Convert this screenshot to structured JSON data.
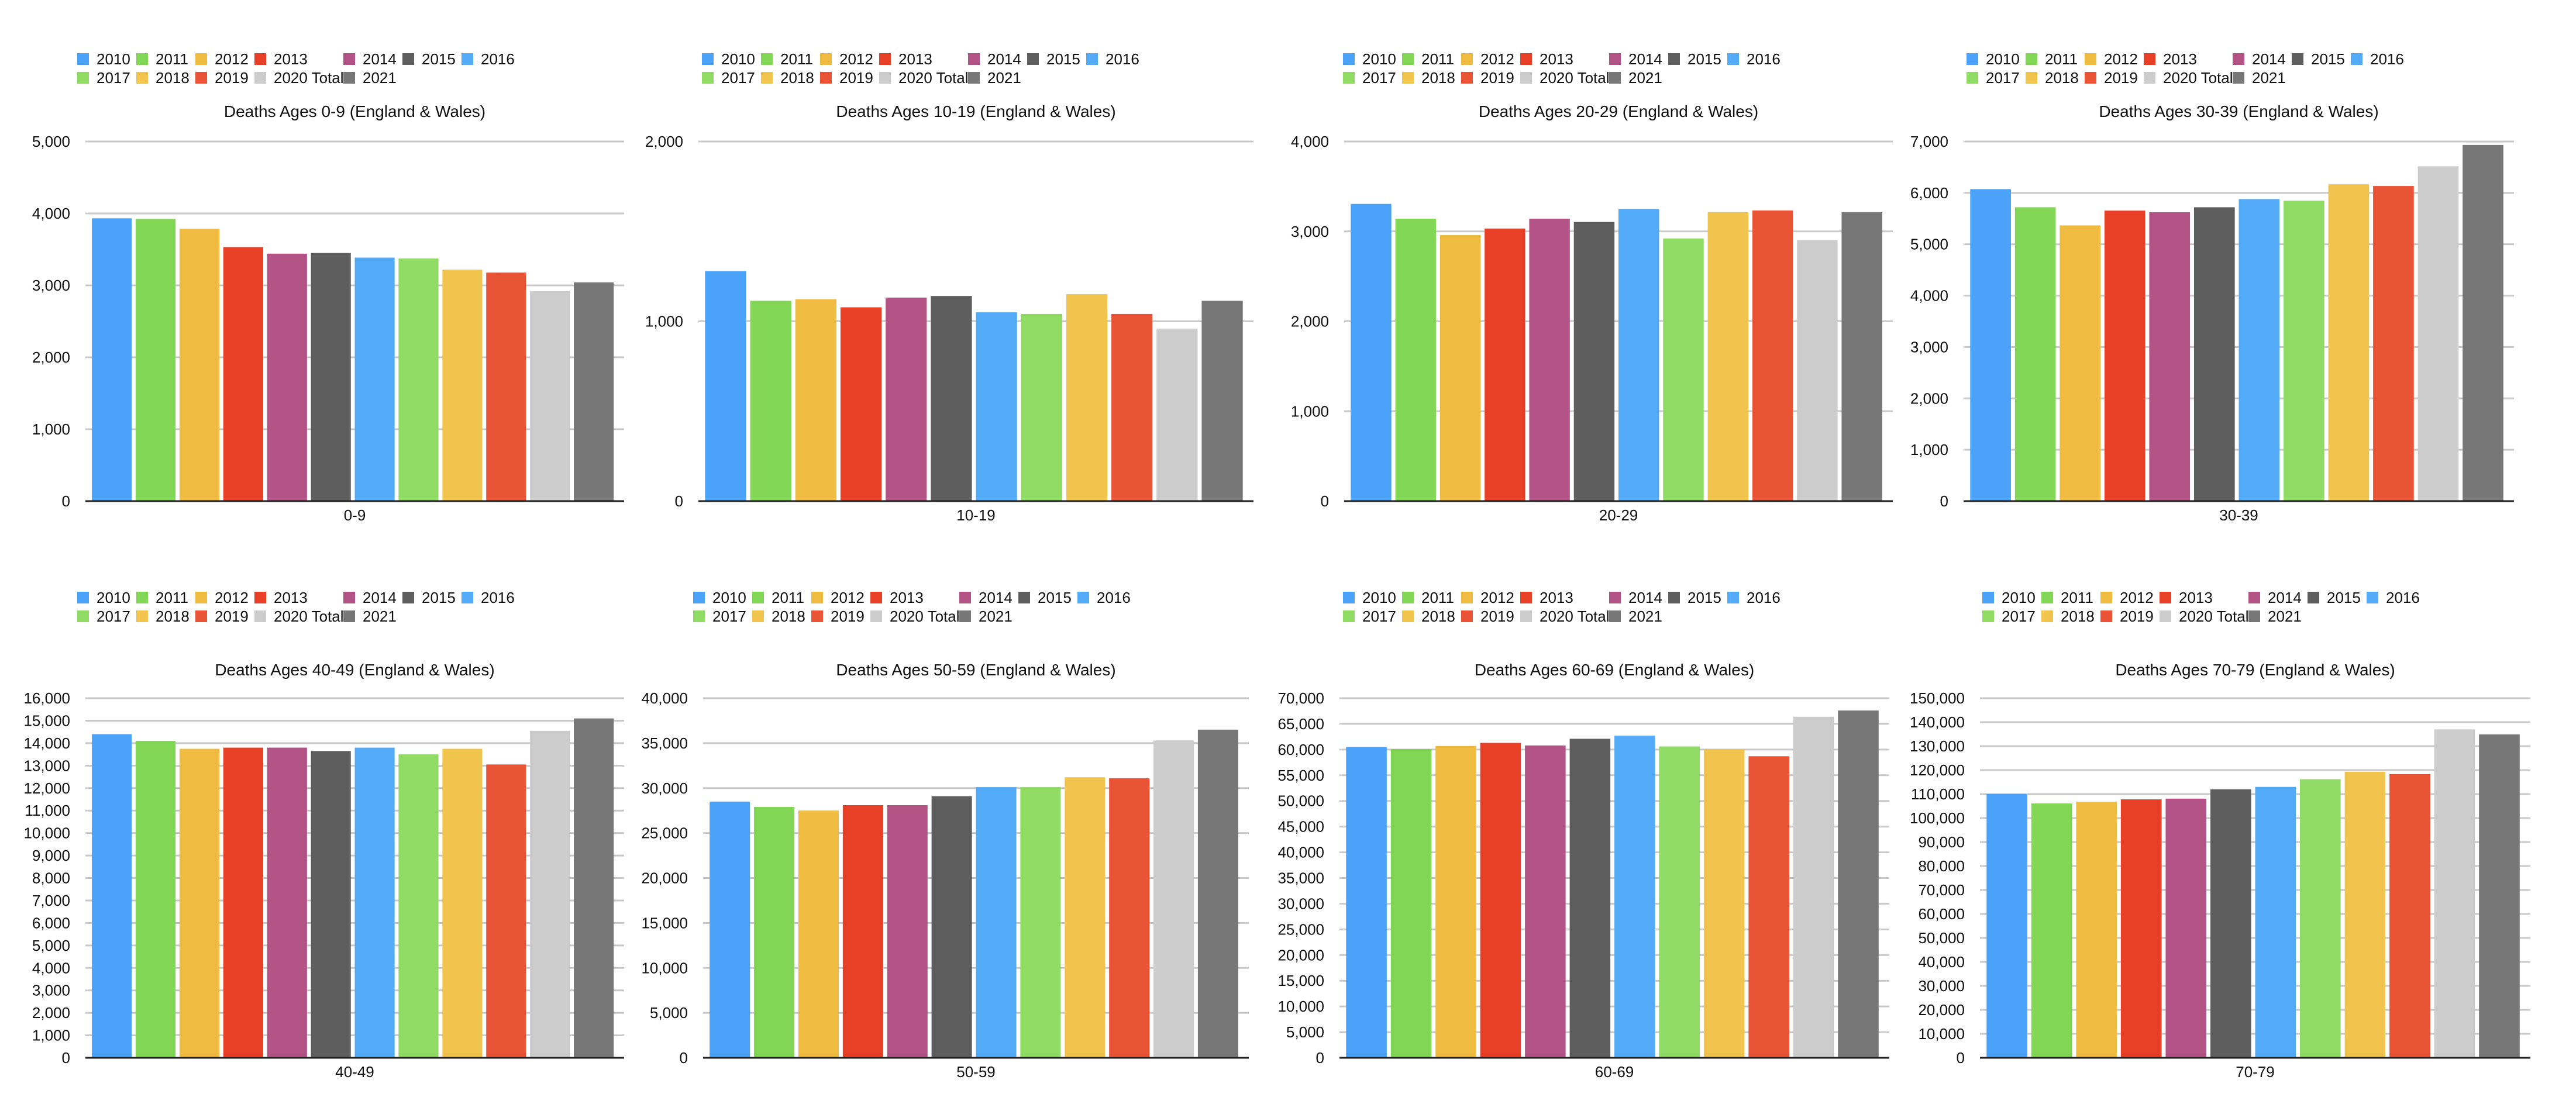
{
  "series_names": [
    "2010",
    "2011",
    "2012",
    "2013",
    "2014",
    "2015",
    "2016",
    "2017",
    "2018",
    "2019",
    "2020 Total",
    "2021"
  ],
  "colors": [
    "#4aa3f8",
    "#82d655",
    "#efbb40",
    "#e84027",
    "#b25285",
    "#5e5e5e",
    "#53abf8",
    "#8fdb64",
    "#f0c44d",
    "#e95437",
    "#cccccc",
    "#777777"
  ],
  "chart_data": [
    {
      "type": "bar",
      "title": "Deaths Ages 0-9 (England & Wales)",
      "category": "0-9",
      "ylim": [
        0,
        5000
      ],
      "ystep": 1000,
      "yticks": [
        "0",
        "1,000",
        "2,000",
        "3,000",
        "4,000",
        "5,000"
      ],
      "values": [
        3932,
        3923,
        3786,
        3532,
        3441,
        3450,
        3386,
        3373,
        3218,
        3177,
        2918,
        3041
      ],
      "legend": "top"
    },
    {
      "type": "bar",
      "title": "Deaths Ages 10-19 (England & Wales)",
      "category": "10-19",
      "ylim": [
        0,
        2000
      ],
      "ystep": 1000,
      "yticks": [
        "0",
        "1,000",
        "2,000"
      ],
      "values": [
        1279,
        1114,
        1123,
        1078,
        1132,
        1141,
        1050,
        1041,
        1151,
        1041,
        959,
        1114
      ],
      "legend": "top"
    },
    {
      "type": "bar",
      "title": "Deaths Ages 20-29 (England & Wales)",
      "category": "20-29",
      "ylim": [
        0,
        4000
      ],
      "ystep": 1000,
      "yticks": [
        "0",
        "1,000",
        "2,000",
        "3,000",
        "4,000"
      ],
      "values": [
        3306,
        3141,
        2959,
        3032,
        3141,
        3105,
        3251,
        2922,
        3214,
        3233,
        2904,
        3214
      ],
      "legend": "top"
    },
    {
      "type": "bar",
      "title": "Deaths Ages 30-39 (England & Wales)",
      "category": "30-39",
      "ylim": [
        0,
        7000
      ],
      "ystep": 1000,
      "yticks": [
        "0",
        "1,000",
        "2,000",
        "3,000",
        "4,000",
        "5,000",
        "6,000",
        "7,000"
      ],
      "values": [
        6073,
        5720,
        5367,
        5655,
        5623,
        5720,
        5879,
        5847,
        6166,
        6134,
        6518,
        6933
      ],
      "legend": "top"
    },
    {
      "type": "bar",
      "title": "Deaths Ages 40-49 (England & Wales)",
      "category": "40-49",
      "ylim": [
        0,
        16000
      ],
      "ystep": 1000,
      "yticks": [
        "0",
        "1,000",
        "2,000",
        "3,000",
        "4,000",
        "5,000",
        "6,000",
        "7,000",
        "8,000",
        "9,000",
        "10,000",
        "11,000",
        "12,000",
        "13,000",
        "14,000",
        "15,000",
        "16,000"
      ],
      "values": [
        14400,
        14100,
        13750,
        13800,
        13800,
        13650,
        13800,
        13500,
        13750,
        13050,
        14550,
        15100
      ],
      "legend": "top"
    },
    {
      "type": "bar",
      "title": "Deaths Ages 50-59 (England & Wales)",
      "category": "50-59",
      "ylim": [
        0,
        40000
      ],
      "ystep": 5000,
      "yticks": [
        "0",
        "5,000",
        "10,000",
        "15,000",
        "20,000",
        "25,000",
        "30,000",
        "35,000",
        "40,000"
      ],
      "values": [
        28500,
        27900,
        27500,
        28100,
        28100,
        29100,
        30100,
        30100,
        31200,
        31100,
        35300,
        36500
      ],
      "legend": "top"
    },
    {
      "type": "bar",
      "title": "Deaths Ages 60-69 (England & Wales)",
      "category": "60-69",
      "ylim": [
        0,
        70000
      ],
      "ystep": 5000,
      "yticks": [
        "0",
        "5,000",
        "10,000",
        "15,000",
        "20,000",
        "25,000",
        "30,000",
        "35,000",
        "40,000",
        "45,000",
        "50,000",
        "55,000",
        "60,000",
        "65,000",
        "70,000"
      ],
      "values": [
        60500,
        60100,
        60700,
        61300,
        60800,
        62100,
        62700,
        60600,
        60100,
        58700,
        66400,
        67600
      ],
      "legend": "top"
    },
    {
      "type": "bar",
      "title": "Deaths Ages 70-79 (England & Wales)",
      "category": "70-79",
      "ylim": [
        0,
        150000
      ],
      "ystep": 10000,
      "yticks": [
        "0",
        "10,000",
        "20,000",
        "30,000",
        "40,000",
        "50,000",
        "60,000",
        "70,000",
        "80,000",
        "90,000",
        "100,000",
        "110,000",
        "120,000",
        "130,000",
        "140,000",
        "150,000"
      ],
      "values": [
        110000,
        106100,
        106800,
        107800,
        108100,
        112000,
        113000,
        116200,
        119300,
        118300,
        137000,
        134900
      ],
      "legend": "top"
    }
  ]
}
